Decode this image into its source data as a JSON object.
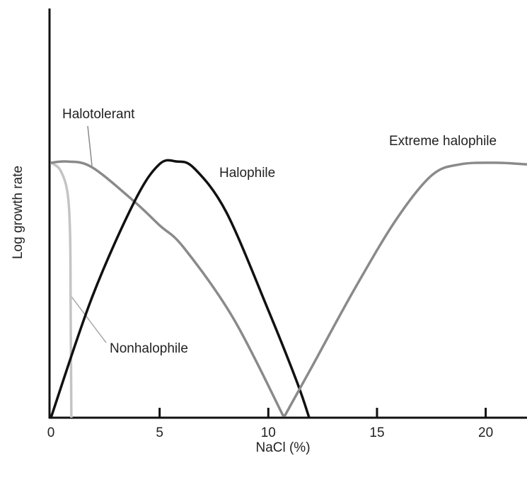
{
  "chart_data": {
    "type": "line",
    "xlabel": "NaCl (%)",
    "ylabel": "Log growth rate",
    "xlim": [
      0,
      21.9
    ],
    "xticks": [
      0,
      5,
      10,
      15,
      20
    ],
    "ylim": [
      0,
      1
    ],
    "series": [
      {
        "name": "Nonhalophile",
        "color": "#c4c4c4",
        "x": [
          0,
          0.42,
          0.75,
          0.88,
          0.91,
          0.94
        ],
        "values": [
          0.623,
          0.606,
          0.554,
          0.45,
          0.242,
          0
        ]
      },
      {
        "name": "Halotolerant",
        "color": "#8a8a8a",
        "x": [
          0,
          0.75,
          1.89,
          3.84,
          5.0,
          6.12,
          8.4,
          10.7
        ],
        "values": [
          0.623,
          0.626,
          0.612,
          0.528,
          0.47,
          0.415,
          0.242,
          0.003
        ]
      },
      {
        "name": "Halophile",
        "color": "#111111",
        "x": [
          0,
          1.89,
          3.84,
          4.98,
          5.79,
          6.6,
          8.07,
          10.02,
          11.32,
          11.88
        ],
        "values": [
          0,
          0.294,
          0.528,
          0.619,
          0.626,
          0.609,
          0.502,
          0.26,
          0.087,
          0
        ]
      },
      {
        "name": "Extreme halophile",
        "color": "#8a8a8a",
        "x": [
          10.74,
          11.97,
          13.93,
          15.88,
          17.51,
          18.81,
          20.44,
          21.9
        ],
        "values": [
          0.003,
          0.121,
          0.311,
          0.484,
          0.592,
          0.619,
          0.623,
          0.619
        ]
      }
    ]
  }
}
